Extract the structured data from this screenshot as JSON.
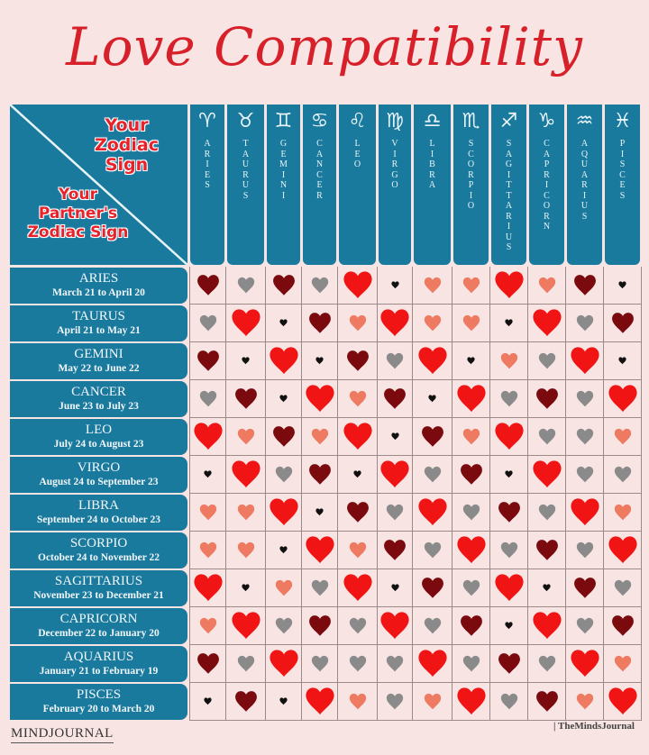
{
  "title": "Love Compatibility",
  "corner": {
    "your_sign_label": "Your\nZodiac\nSign",
    "partner_sign_label": "Your\nPartner's\nZodiac Sign"
  },
  "legend_colors": {
    "R": "#f01414",
    "D": "#7a0a0e",
    "S": "#ee7a62",
    "G": "#8a8a8a",
    "B": "#111111"
  },
  "columns": [
    {
      "glyph": "♈",
      "name": "ARIES"
    },
    {
      "glyph": "♉",
      "name": "TAURUS"
    },
    {
      "glyph": "♊",
      "name": "GEMINI"
    },
    {
      "glyph": "♋",
      "name": "CANCER"
    },
    {
      "glyph": "♌",
      "name": "LEO"
    },
    {
      "glyph": "♍",
      "name": "VIRGO"
    },
    {
      "glyph": "♎",
      "name": "LIBRA"
    },
    {
      "glyph": "♏",
      "name": "SCORPIO"
    },
    {
      "glyph": "♐",
      "name": "SAGITTARIUS"
    },
    {
      "glyph": "♑",
      "name": "CAPRICORN"
    },
    {
      "glyph": "♒",
      "name": "AQUARIUS"
    },
    {
      "glyph": "♓",
      "name": "PISCES"
    }
  ],
  "rows": [
    {
      "sign": "ARIES",
      "dates": "March 21 to April 20"
    },
    {
      "sign": "TAURUS",
      "dates": "April 21 to May 21"
    },
    {
      "sign": "GEMINI",
      "dates": "May 22 to  June 22"
    },
    {
      "sign": "CANCER",
      "dates": "June 23 to July 23"
    },
    {
      "sign": "LEO",
      "dates": "July 24 to August 23"
    },
    {
      "sign": "VIRGO",
      "dates": "August 24 to September 23"
    },
    {
      "sign": "LIBRA",
      "dates": "September 24 to October 23"
    },
    {
      "sign": "SCORPIO",
      "dates": "October 24 to November 22"
    },
    {
      "sign": "SAGITTARIUS",
      "dates": "November 23 to December 21"
    },
    {
      "sign": "CAPRICORN",
      "dates": "December 22 to January 20"
    },
    {
      "sign": "AQUARIUS",
      "dates": "January 21 to February 19"
    },
    {
      "sign": "PISCES",
      "dates": "February 20 to March 20"
    }
  ],
  "chart_data": {
    "type": "heatmap",
    "title": "Love Compatibility",
    "xlabel": "Your Zodiac Sign",
    "ylabel": "Your Partner's Zodiac Sign",
    "x": [
      "ARIES",
      "TAURUS",
      "GEMINI",
      "CANCER",
      "LEO",
      "VIRGO",
      "LIBRA",
      "SCORPIO",
      "SAGITTARIUS",
      "CAPRICORN",
      "AQUARIUS",
      "PISCES"
    ],
    "y": [
      "ARIES",
      "TAURUS",
      "GEMINI",
      "CANCER",
      "LEO",
      "VIRGO",
      "LIBRA",
      "SCORPIO",
      "SAGITTARIUS",
      "CAPRICORN",
      "AQUARIUS",
      "PISCES"
    ],
    "legend": {
      "R": "large bright red heart",
      "D": "dark red heart",
      "S": "salmon heart",
      "G": "gray heart",
      "B": "small black heart"
    },
    "values": [
      [
        "D",
        "G",
        "D",
        "G",
        "R",
        "B",
        "S",
        "S",
        "R",
        "S",
        "D",
        "B"
      ],
      [
        "G",
        "R",
        "B",
        "D",
        "S",
        "R",
        "S",
        "S",
        "B",
        "R",
        "G",
        "D"
      ],
      [
        "D",
        "B",
        "R",
        "B",
        "D",
        "G",
        "R",
        "B",
        "S",
        "G",
        "R",
        "B"
      ],
      [
        "G",
        "D",
        "B",
        "R",
        "S",
        "D",
        "B",
        "R",
        "G",
        "D",
        "G",
        "R"
      ],
      [
        "R",
        "S",
        "D",
        "S",
        "R",
        "B",
        "D",
        "S",
        "R",
        "G",
        "G",
        "S"
      ],
      [
        "B",
        "R",
        "G",
        "D",
        "B",
        "R",
        "G",
        "D",
        "B",
        "R",
        "G",
        "G"
      ],
      [
        "S",
        "S",
        "R",
        "B",
        "D",
        "G",
        "R",
        "G",
        "D",
        "G",
        "R",
        "S"
      ],
      [
        "S",
        "S",
        "B",
        "R",
        "S",
        "D",
        "G",
        "R",
        "G",
        "D",
        "G",
        "R"
      ],
      [
        "R",
        "B",
        "S",
        "G",
        "R",
        "B",
        "D",
        "G",
        "R",
        "B",
        "D",
        "G"
      ],
      [
        "S",
        "R",
        "G",
        "D",
        "G",
        "R",
        "G",
        "D",
        "B",
        "R",
        "G",
        "D"
      ],
      [
        "D",
        "G",
        "R",
        "G",
        "G",
        "G",
        "R",
        "G",
        "D",
        "G",
        "R",
        "S"
      ],
      [
        "B",
        "D",
        "B",
        "R",
        "S",
        "G",
        "S",
        "R",
        "G",
        "D",
        "S",
        "R"
      ]
    ]
  },
  "footer": {
    "brand": "MINDJOURNAL",
    "credit": "| TheMindsJournal"
  }
}
